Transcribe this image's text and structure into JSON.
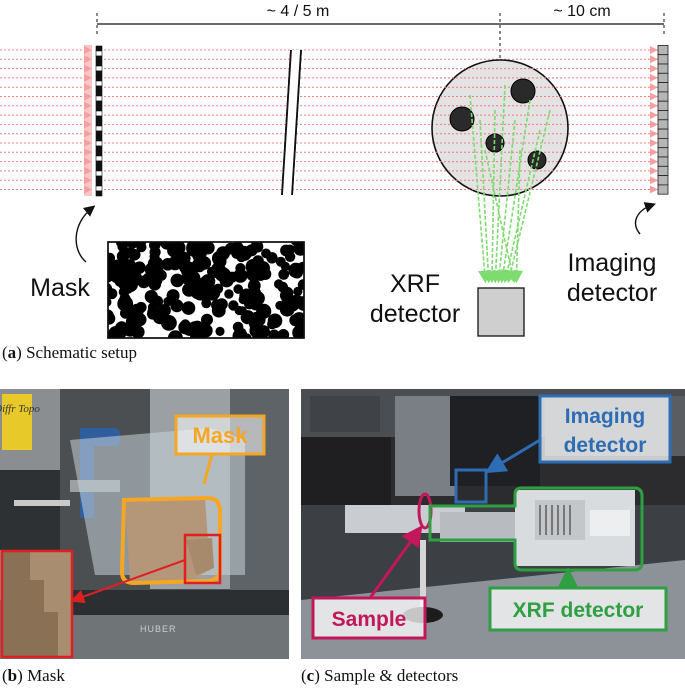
{
  "panel_a": {
    "caption_letter": "a",
    "caption_text": "Schematic setup",
    "distance_left": "~ 4 / 5 m",
    "distance_right": "~ 10 cm",
    "label_mask": "Mask",
    "label_xrf_line1": "XRF",
    "label_xrf_line2": "detector",
    "label_imaging_line1": "Imaging",
    "label_imaging_line2": "detector"
  },
  "panel_b": {
    "caption_letter": "b",
    "caption_text": "Mask",
    "callout_label": "Mask",
    "callout_color": "#f5a623",
    "sign_text": "Diffr Topo"
  },
  "panel_c": {
    "caption_letter": "c",
    "caption_text": "Sample & detectors",
    "label_imaging_line1": "Imaging",
    "label_imaging_line2": "detector",
    "imaging_color": "#2e6db4",
    "label_sample": "Sample",
    "sample_color": "#c2185b",
    "label_xrf": "XRF detector",
    "xrf_color": "#2ea043"
  }
}
